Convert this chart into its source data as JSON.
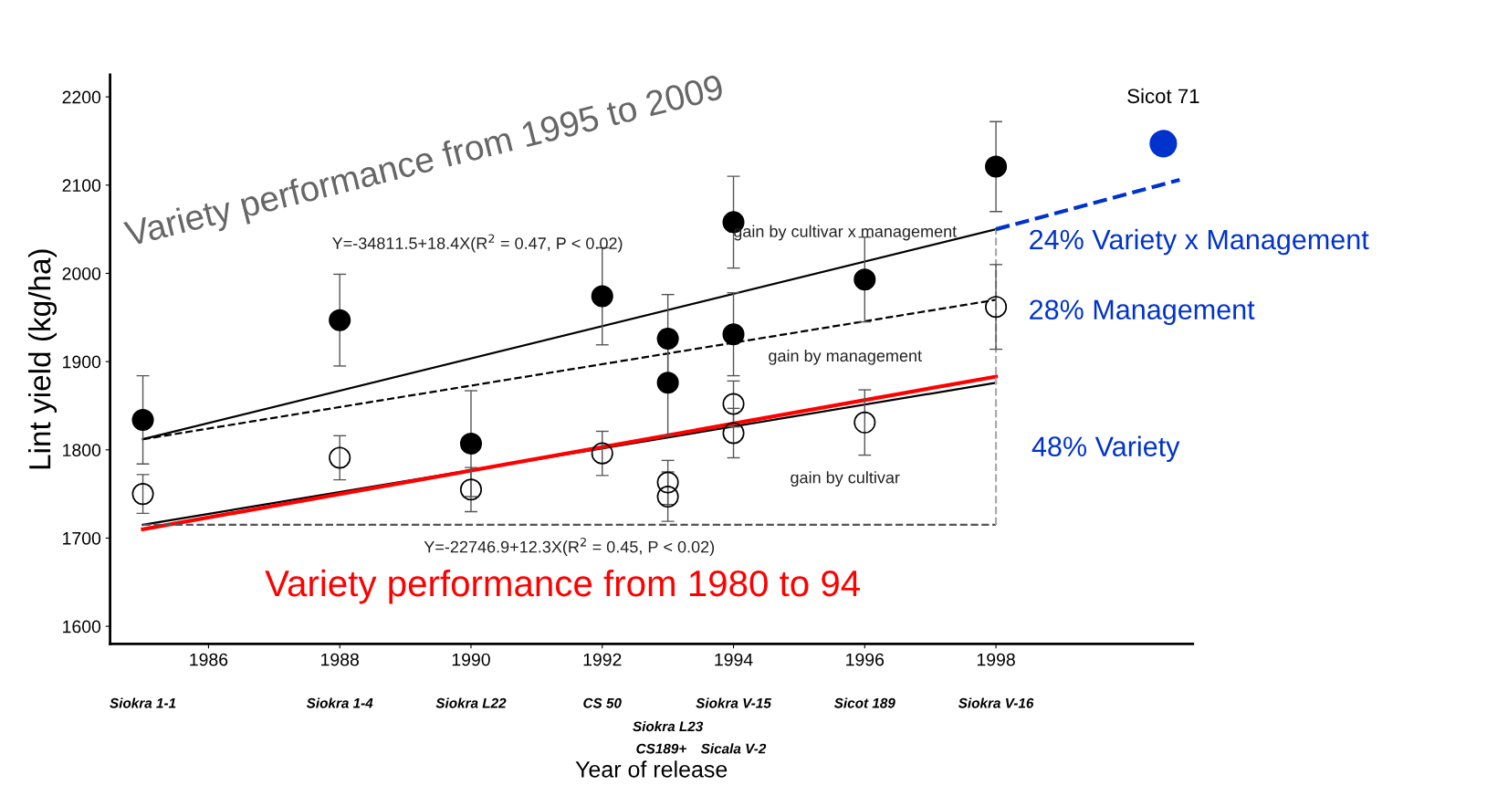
{
  "chart_data": {
    "type": "scatter",
    "ylabel": "Lint yield (kg/ha)",
    "xlabel": "Year of release",
    "xlim": [
      1984.5,
      2001
    ],
    "xticks": [
      1986,
      1988,
      1990,
      1992,
      1994,
      1996,
      1998
    ],
    "ylim": [
      1580,
      2225
    ],
    "yticks": [
      1600,
      1700,
      1800,
      1900,
      2000,
      2100,
      2200
    ],
    "grid": false,
    "series": [
      {
        "marker": "circle",
        "color": "#000000",
        "x": [
          1985,
          1988,
          1990,
          1992,
          1993,
          1993,
          1994,
          1994,
          1996,
          1998
        ],
        "values": [
          1834,
          1947,
          1807,
          1974,
          1926,
          1876,
          2058,
          1931,
          1993,
          2121
        ],
        "errors": [
          50,
          52,
          60,
          55,
          50,
          60,
          52,
          47,
          48,
          51
        ]
      },
      {
        "marker": "circle",
        "color": "#000000",
        "x": [
          1985,
          1988,
          1990,
          1992,
          1993,
          1993,
          1994,
          1994,
          1996,
          1998
        ],
        "values": [
          1750,
          1791,
          1755,
          1796,
          1763,
          1747,
          1852,
          1819,
          1831,
          1962
        ],
        "errors": [
          22,
          25,
          25,
          25,
          25,
          28,
          26,
          28,
          37,
          48
        ]
      },
      {
        "type": "line",
        "color": "#000000",
        "line_style": "solid",
        "x": [
          1985,
          1998
        ],
        "values": [
          1812,
          2050
        ]
      },
      {
        "type": "line",
        "color": "#000000",
        "line_style": "dashed",
        "x": [
          1985,
          1998
        ],
        "values": [
          1812,
          1970
        ]
      },
      {
        "type": "line",
        "color": "#000000",
        "line_style": "solid",
        "x": [
          1985,
          1998
        ],
        "values": [
          1715,
          1876
        ]
      },
      {
        "type": "line",
        "color": "#ff0000",
        "line_style": "solid",
        "x": [
          1985,
          1998
        ],
        "values": [
          1710,
          1883
        ]
      },
      {
        "type": "line",
        "color": "#555555",
        "line_style": "dashed",
        "x": [
          1985,
          1998
        ],
        "values": [
          1715,
          1715
        ]
      },
      {
        "type": "line",
        "color": "#aaaaaa",
        "line_style": "dashed",
        "x": [
          1998,
          1998
        ],
        "values": [
          1715,
          2050
        ]
      },
      {
        "type": "line",
        "color": "#0033cc",
        "line_style": "dashed",
        "x": [
          1998,
          2000.8
        ],
        "values": [
          2050,
          2106
        ]
      },
      {
        "marker": "circle",
        "name": "Sicot 71",
        "color": "#0033cc",
        "x": [
          2000.55
        ],
        "values": [
          2147
        ]
      }
    ],
    "annotations": [
      "Variety performance from 1995 to 2009",
      "Variety performance from 1980 to 94",
      "Y=-34811.5+18.4X(R$^{2}$ = 0.47, P < 0.02)",
      "Y=-22746.9+12.3X(R$^{2}$ = 0.45, P < 0.02)",
      "gain by cultivar x management",
      "gain by management",
      "gain by cultivar",
      "24% Variety x Management",
      "28% Management",
      "48% Variety",
      "Siokra 1-1",
      "Siokra 1-4",
      "Siokra L22",
      "CS 50",
      "Siokra V-15",
      "Sicot 189",
      "Siokra V-16",
      "Siokra L23",
      "CS189+",
      "Sicala V-2"
    ]
  }
}
